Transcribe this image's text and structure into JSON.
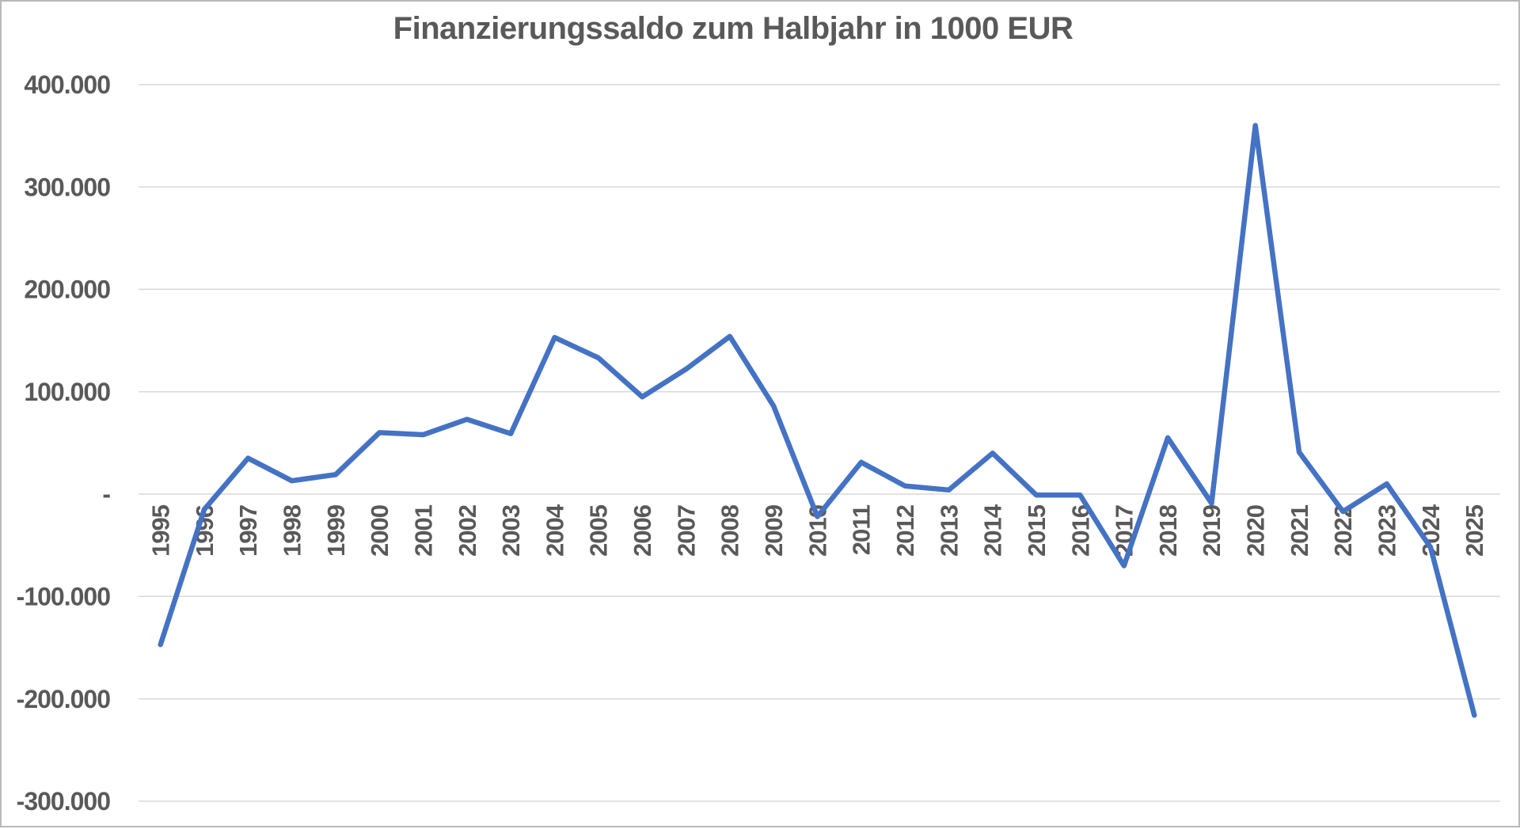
{
  "page": {
    "background": "#ffffff",
    "frame_border_color": "#b9b9b9"
  },
  "chart_data": {
    "type": "line",
    "title": "Finanzierungssaldo zum Halbjahr in 1000 EUR",
    "categories": [
      "1995",
      "1996",
      "1997",
      "1998",
      "1999",
      "2000",
      "2001",
      "2002",
      "2003",
      "2004",
      "2005",
      "2006",
      "2007",
      "2008",
      "2009",
      "2010",
      "2011",
      "2012",
      "2013",
      "2014",
      "2015",
      "2016",
      "2017",
      "2018",
      "2019",
      "2020",
      "2021",
      "2022",
      "2023",
      "2024",
      "2025"
    ],
    "values": [
      -147000,
      -15000,
      35000,
      13000,
      19000,
      60000,
      58000,
      73000,
      59000,
      153000,
      133000,
      95000,
      122000,
      154000,
      86000,
      -22000,
      31000,
      8000,
      4000,
      40000,
      -1000,
      -1000,
      -70000,
      55000,
      -9000,
      360000,
      41000,
      -17000,
      10000,
      -52000,
      -216000
    ],
    "xlabel": "",
    "ylabel": "",
    "ylim": [
      -300000,
      400000
    ],
    "y_ticks": [
      {
        "value": 400000,
        "label": "400.000"
      },
      {
        "value": 300000,
        "label": "300.000"
      },
      {
        "value": 200000,
        "label": "200.000"
      },
      {
        "value": 100000,
        "label": "100.000"
      },
      {
        "value": 0,
        "label": "-"
      },
      {
        "value": -100000,
        "label": "-100.000"
      },
      {
        "value": -200000,
        "label": "-200.000"
      },
      {
        "value": -300000,
        "label": "-300.000"
      }
    ],
    "grid": true,
    "legend_position": "none",
    "x_label_rotation_deg": 90,
    "line_color": "#4472C4",
    "gridline_color": "#D9D9D9",
    "axis_label_color": "#595959",
    "title_color": "#595959"
  }
}
